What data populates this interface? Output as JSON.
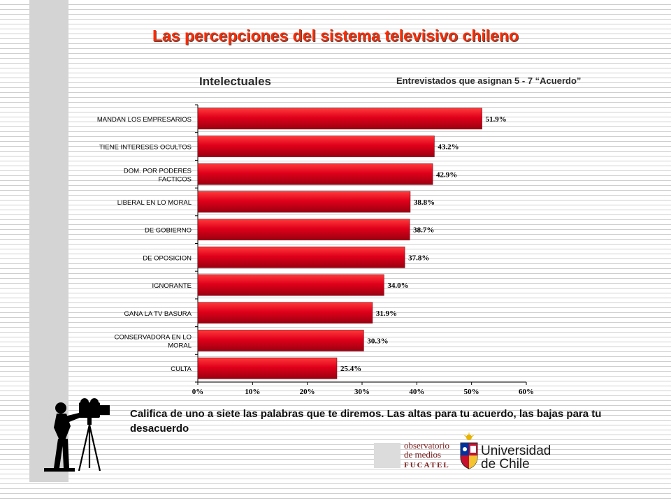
{
  "slide": {
    "title": "Las percepciones del sistema televisivo chileno",
    "subtitle": "Intelectuales",
    "note": "Entrevistados que asignan  5 - 7 “Acuerdo”",
    "instruction": "Califica de uno a siete las palabras que te diremos. Las altas para tu acuerdo, las bajas para tu desacuerdo"
  },
  "logos": {
    "observatorio_line1": "observatorio",
    "observatorio_line2": "de medios",
    "observatorio_brand": "FUCATEL",
    "university_line1": "Universidad",
    "university_line2": "de Chile"
  },
  "colors": {
    "title": "#ff2a00",
    "bar": "#e0001a",
    "bar_dark": "#9a0010",
    "background_stripe": "#cfcfcf"
  },
  "icons": [
    "camera-operator-icon",
    "university-crest-icon"
  ],
  "chart_data": {
    "type": "bar",
    "orientation": "horizontal",
    "categories": [
      [
        "MANDAN LOS EMPRESARIOS"
      ],
      [
        "TIENE INTERESES OCULTOS"
      ],
      [
        "DOM. POR PODERES",
        "FACTICOS"
      ],
      [
        "LIBERAL EN LO MORAL"
      ],
      [
        "DE GOBIERNO"
      ],
      [
        "DE OPOSICION"
      ],
      [
        "IGNORANTE"
      ],
      [
        "GANA LA TV BASURA"
      ],
      [
        "CONSERVADORA EN LO",
        "MORAL"
      ],
      [
        "CULTA"
      ]
    ],
    "values": [
      51.9,
      43.2,
      42.9,
      38.8,
      38.7,
      37.8,
      34.0,
      31.9,
      30.3,
      25.4
    ],
    "value_labels": [
      "51.9%",
      "43.2%",
      "42.9%",
      "38.8%",
      "38.7%",
      "37.8%",
      "34.0%",
      "31.9%",
      "30.3%",
      "25.4%"
    ],
    "xlim": [
      0,
      60
    ],
    "xticks": [
      "0%",
      "10%",
      "20%",
      "30%",
      "40%",
      "50%",
      "60%"
    ],
    "grid": false,
    "legend": "none"
  }
}
